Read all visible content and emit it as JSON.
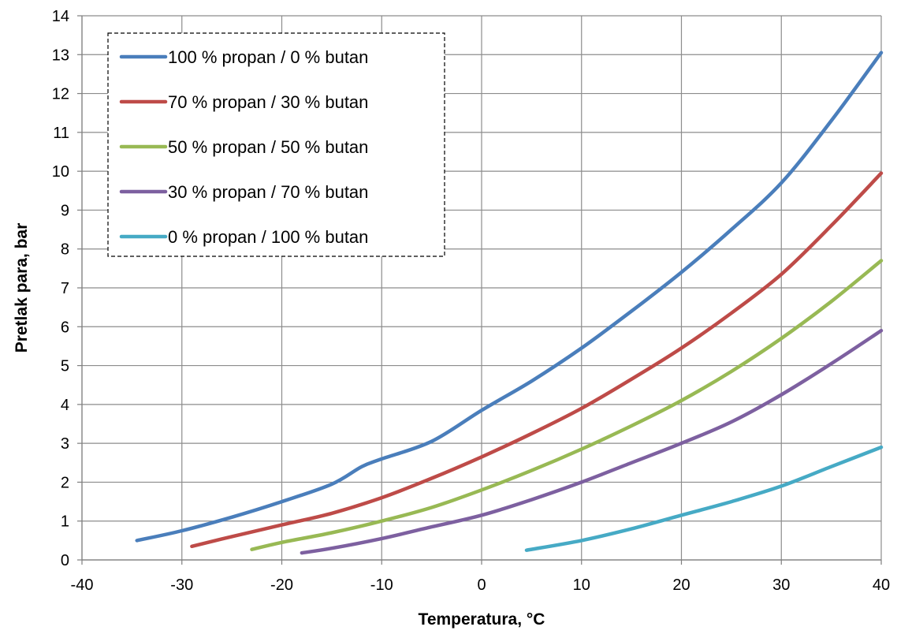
{
  "chart_data": {
    "type": "line",
    "xlabel": "Temperatura, °C",
    "ylabel": "Pretlak para, bar",
    "xlim": [
      -40,
      40
    ],
    "ylim": [
      0,
      14
    ],
    "x_ticks": [
      -40,
      -30,
      -20,
      -10,
      0,
      10,
      20,
      30,
      40
    ],
    "y_ticks": [
      0,
      1,
      2,
      3,
      4,
      5,
      6,
      7,
      8,
      9,
      10,
      11,
      12,
      13,
      14
    ],
    "grid": true,
    "legend_position": "top-left",
    "series": [
      {
        "name": "100 % propan / 0 % butan",
        "color": "#4a7ebb",
        "points": [
          [
            -34.5,
            0.5
          ],
          [
            -30,
            0.75
          ],
          [
            -25,
            1.1
          ],
          [
            -20,
            1.5
          ],
          [
            -15,
            1.95
          ],
          [
            -12,
            2.4
          ],
          [
            -10,
            2.6
          ],
          [
            -5,
            3.05
          ],
          [
            0,
            3.85
          ],
          [
            5,
            4.6
          ],
          [
            10,
            5.45
          ],
          [
            15,
            6.4
          ],
          [
            20,
            7.4
          ],
          [
            25,
            8.5
          ],
          [
            30,
            9.7
          ],
          [
            35,
            11.3
          ],
          [
            40,
            13.05
          ]
        ]
      },
      {
        "name": "70 % propan / 30 % butan",
        "color": "#be4b48",
        "points": [
          [
            -29,
            0.35
          ],
          [
            -25,
            0.6
          ],
          [
            -20,
            0.9
          ],
          [
            -15,
            1.2
          ],
          [
            -10,
            1.6
          ],
          [
            -5,
            2.1
          ],
          [
            0,
            2.65
          ],
          [
            5,
            3.25
          ],
          [
            10,
            3.9
          ],
          [
            15,
            4.65
          ],
          [
            20,
            5.45
          ],
          [
            25,
            6.35
          ],
          [
            30,
            7.35
          ],
          [
            35,
            8.6
          ],
          [
            40,
            9.95
          ]
        ]
      },
      {
        "name": "50 % propan / 50 % butan",
        "color": "#98b954",
        "points": [
          [
            -23,
            0.27
          ],
          [
            -20,
            0.45
          ],
          [
            -15,
            0.7
          ],
          [
            -10,
            1.0
          ],
          [
            -5,
            1.35
          ],
          [
            0,
            1.8
          ],
          [
            5,
            2.3
          ],
          [
            10,
            2.85
          ],
          [
            15,
            3.45
          ],
          [
            20,
            4.1
          ],
          [
            25,
            4.85
          ],
          [
            30,
            5.7
          ],
          [
            35,
            6.65
          ],
          [
            40,
            7.7
          ]
        ]
      },
      {
        "name": "30 % propan / 70 % butan",
        "color": "#7d60a0",
        "points": [
          [
            -18,
            0.18
          ],
          [
            -15,
            0.3
          ],
          [
            -10,
            0.55
          ],
          [
            -5,
            0.85
          ],
          [
            0,
            1.15
          ],
          [
            5,
            1.55
          ],
          [
            10,
            2.0
          ],
          [
            15,
            2.5
          ],
          [
            20,
            3.0
          ],
          [
            25,
            3.55
          ],
          [
            30,
            4.25
          ],
          [
            35,
            5.05
          ],
          [
            40,
            5.9
          ]
        ]
      },
      {
        "name": "0 % propan / 100 % butan",
        "color": "#46aac5",
        "points": [
          [
            4.5,
            0.25
          ],
          [
            10,
            0.5
          ],
          [
            15,
            0.8
          ],
          [
            20,
            1.15
          ],
          [
            25,
            1.5
          ],
          [
            30,
            1.9
          ],
          [
            35,
            2.4
          ],
          [
            40,
            2.9
          ]
        ]
      }
    ]
  }
}
